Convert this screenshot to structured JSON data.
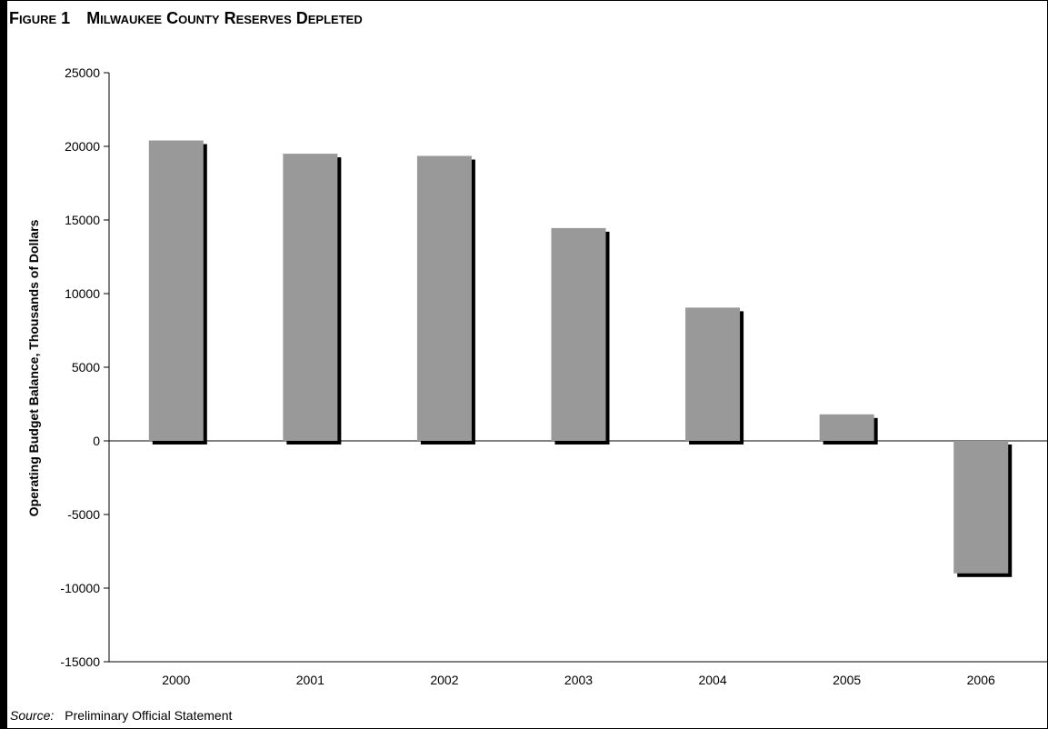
{
  "figure": {
    "number": "Figure 1",
    "title": "Milwaukee County Reserves Depleted"
  },
  "source": {
    "label": "Source:",
    "text": "Preliminary Official Statement"
  },
  "colors": {
    "bar": "#999999",
    "shadow": "#000000"
  },
  "chart_data": {
    "type": "bar",
    "title": "Milwaukee County Reserves Depleted",
    "xlabel": "",
    "ylabel": "Operating Budget Balance, Thousands of Dollars",
    "categories": [
      "2000",
      "2001",
      "2002",
      "2003",
      "2004",
      "2005",
      "2006"
    ],
    "values": [
      20400,
      19500,
      19350,
      14450,
      9050,
      1800,
      -9000
    ],
    "ylim": [
      -15000,
      25000
    ],
    "yticks": [
      25000,
      20000,
      15000,
      10000,
      5000,
      0,
      -5000,
      -10000,
      -15000
    ],
    "grid": false,
    "legend": "none"
  }
}
